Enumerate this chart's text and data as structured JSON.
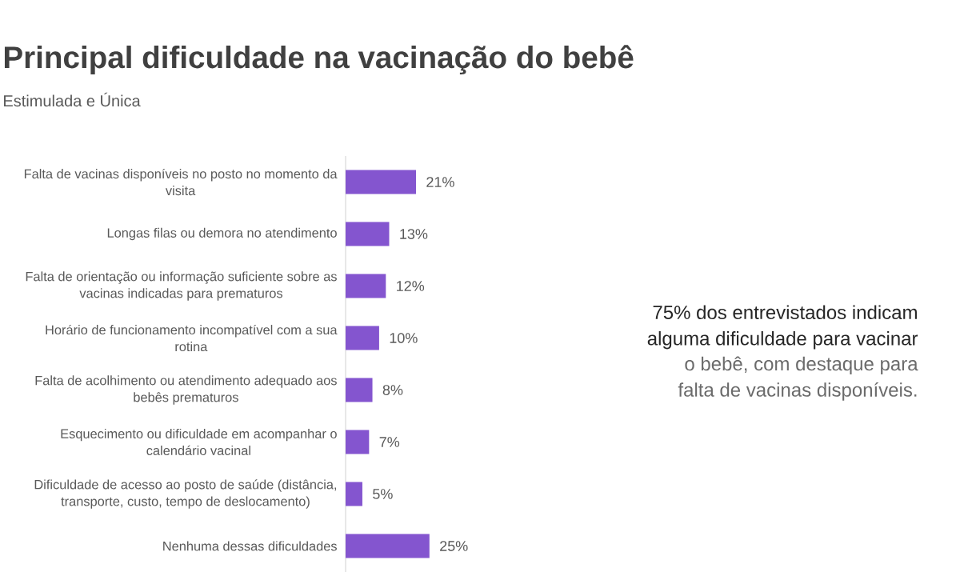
{
  "chart_data": {
    "type": "bar",
    "orientation": "horizontal",
    "title": "Principal dificuldade na vacinação do bebê",
    "subtitle": "Estimulada e Única",
    "categories": [
      "Falta de vacinas disponíveis no posto no momento da visita",
      "Longas filas ou demora no atendimento",
      "Falta de orientação ou informação suficiente sobre as vacinas indicadas para prematuros",
      "Horário de funcionamento incompatível com a sua rotina",
      "Falta de acolhimento ou atendimento adequado aos bebês prematuros",
      "Esquecimento ou dificuldade em acompanhar o calendário vacinal",
      "Dificuldade de acesso ao posto de saúde (distância, transporte, custo, tempo de deslocamento)",
      "Nenhuma dessas dificuldades"
    ],
    "values": [
      21,
      13,
      12,
      10,
      8,
      7,
      5,
      25
    ],
    "value_labels": [
      "21%",
      "13%",
      "12%",
      "10%",
      "8%",
      "7%",
      "5%",
      "25%"
    ],
    "color": "#8455cf",
    "tick_labels": "y",
    "annotations": [
      "75% dos entrevistados indicam alguma dificuldade para vacinar",
      "o bebê, com destaque para falta de vacinas disponíveis."
    ]
  }
}
